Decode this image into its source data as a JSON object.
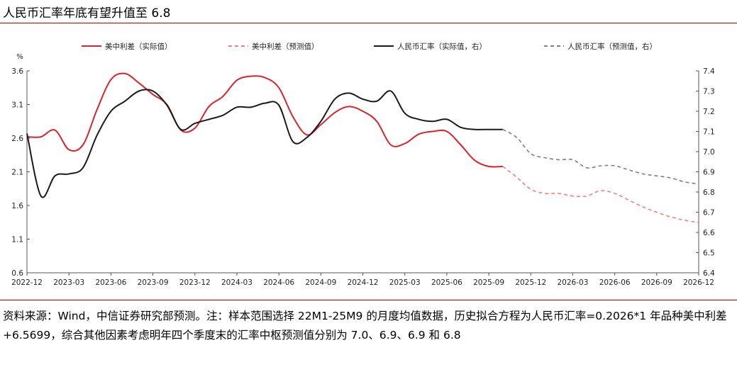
{
  "title": "人民币汇率年底有望升值至 6.8",
  "note": "资料来源：Wind，中信证券研究部预测。注：样本范围选择 22M1-25M9 的月度均值数据，历史拟合方程为人民币汇率=0.2026*1 年品种美中利差+6.5699，综合其他因素考虑明年四个季度末的汇率中枢预测值分别为 7.0、6.9、6.9 和 6.8",
  "colors": {
    "accent": "#c00000",
    "spread": "#d9232d",
    "spread_forecast": "#f08080",
    "fx": "#1a1a1a",
    "fx_forecast": "#808080"
  },
  "chart_data": {
    "type": "line",
    "left_unit": "%",
    "x_labels": [
      "2022-12",
      "2023-03",
      "2023-06",
      "2023-09",
      "2023-12",
      "2024-03",
      "2024-06",
      "2024-09",
      "2024-12",
      "2025-03",
      "2025-06",
      "2025-09",
      "2025-12",
      "2026-03",
      "2026-06",
      "2026-09",
      "2026-12"
    ],
    "y_left": {
      "min": 0.6,
      "max": 3.6,
      "ticks": [
        "0.6",
        "1.1",
        "1.6",
        "2.1",
        "2.6",
        "3.1",
        "3.6"
      ]
    },
    "y_right": {
      "min": 6.4,
      "max": 7.4,
      "ticks": [
        "6.4",
        "6.5",
        "6.6",
        "6.7",
        "6.8",
        "6.9",
        "7.0",
        "7.1",
        "7.2",
        "7.3",
        "7.4"
      ]
    },
    "legend": [
      "美中利差（实际值）",
      "美中利差（预测值）",
      "人民币汇率（实际值，右）",
      "人民币汇率（预测值，右）"
    ],
    "series": [
      {
        "name": "美中利差（实际值）",
        "axis": "left",
        "style": "solid",
        "color": "#d9232d",
        "x": [
          "2022-12",
          "2023-01",
          "2023-02",
          "2023-03",
          "2023-04",
          "2023-05",
          "2023-06",
          "2023-07",
          "2023-08",
          "2023-09",
          "2023-10",
          "2023-11",
          "2023-12",
          "2024-01",
          "2024-02",
          "2024-03",
          "2024-04",
          "2024-05",
          "2024-06",
          "2024-07",
          "2024-08",
          "2024-09",
          "2024-10",
          "2024-11",
          "2024-12",
          "2025-01",
          "2025-02",
          "2025-03",
          "2025-04",
          "2025-05",
          "2025-06",
          "2025-07",
          "2025-08",
          "2025-09",
          "2025-10"
        ],
        "values": [
          2.62,
          2.62,
          2.72,
          2.43,
          2.5,
          3.02,
          3.47,
          3.56,
          3.42,
          3.25,
          3.1,
          2.72,
          2.75,
          3.07,
          3.22,
          3.46,
          3.52,
          3.5,
          3.35,
          2.92,
          2.65,
          2.8,
          2.98,
          3.07,
          3.0,
          2.85,
          2.5,
          2.52,
          2.66,
          2.7,
          2.7,
          2.5,
          2.27,
          2.18,
          2.18
        ]
      },
      {
        "name": "美中利差（预测值）",
        "axis": "left",
        "style": "dashed",
        "color": "#f08080",
        "x": [
          "2025-10",
          "2025-11",
          "2025-12",
          "2026-01",
          "2026-02",
          "2026-03",
          "2026-04",
          "2026-05",
          "2026-06",
          "2026-07",
          "2026-08",
          "2026-09",
          "2026-10",
          "2026-11",
          "2026-12"
        ],
        "values": [
          2.18,
          2.02,
          1.84,
          1.78,
          1.78,
          1.74,
          1.74,
          1.82,
          1.78,
          1.68,
          1.58,
          1.5,
          1.43,
          1.38,
          1.35
        ]
      },
      {
        "name": "人民币汇率（实际值，右）",
        "axis": "right",
        "style": "solid",
        "color": "#1a1a1a",
        "x": [
          "2022-12",
          "2023-01",
          "2023-02",
          "2023-03",
          "2023-04",
          "2023-05",
          "2023-06",
          "2023-07",
          "2023-08",
          "2023-09",
          "2023-10",
          "2023-11",
          "2023-12",
          "2024-01",
          "2024-02",
          "2024-03",
          "2024-04",
          "2024-05",
          "2024-06",
          "2024-07",
          "2024-08",
          "2024-09",
          "2024-10",
          "2024-11",
          "2024-12",
          "2025-01",
          "2025-02",
          "2025-03",
          "2025-04",
          "2025-05",
          "2025-06",
          "2025-07",
          "2025-08",
          "2025-09",
          "2025-10"
        ],
        "values": [
          7.09,
          6.78,
          6.88,
          6.89,
          6.92,
          7.08,
          7.2,
          7.25,
          7.3,
          7.3,
          7.23,
          7.11,
          7.14,
          7.16,
          7.18,
          7.22,
          7.22,
          7.24,
          7.23,
          7.05,
          7.07,
          7.15,
          7.26,
          7.29,
          7.26,
          7.25,
          7.3,
          7.19,
          7.16,
          7.15,
          7.16,
          7.12,
          7.11,
          7.11,
          7.11
        ]
      },
      {
        "name": "人民币汇率（预测值，右）",
        "axis": "right",
        "style": "dashed",
        "color": "#808080",
        "x": [
          "2025-10",
          "2025-11",
          "2025-12",
          "2026-01",
          "2026-02",
          "2026-03",
          "2026-04",
          "2026-05",
          "2026-06",
          "2026-07",
          "2026-08",
          "2026-09",
          "2026-10",
          "2026-11",
          "2026-12"
        ],
        "values": [
          7.11,
          7.07,
          6.99,
          6.97,
          6.96,
          6.96,
          6.92,
          6.93,
          6.93,
          6.91,
          6.89,
          6.88,
          6.87,
          6.85,
          6.84
        ]
      }
    ]
  }
}
